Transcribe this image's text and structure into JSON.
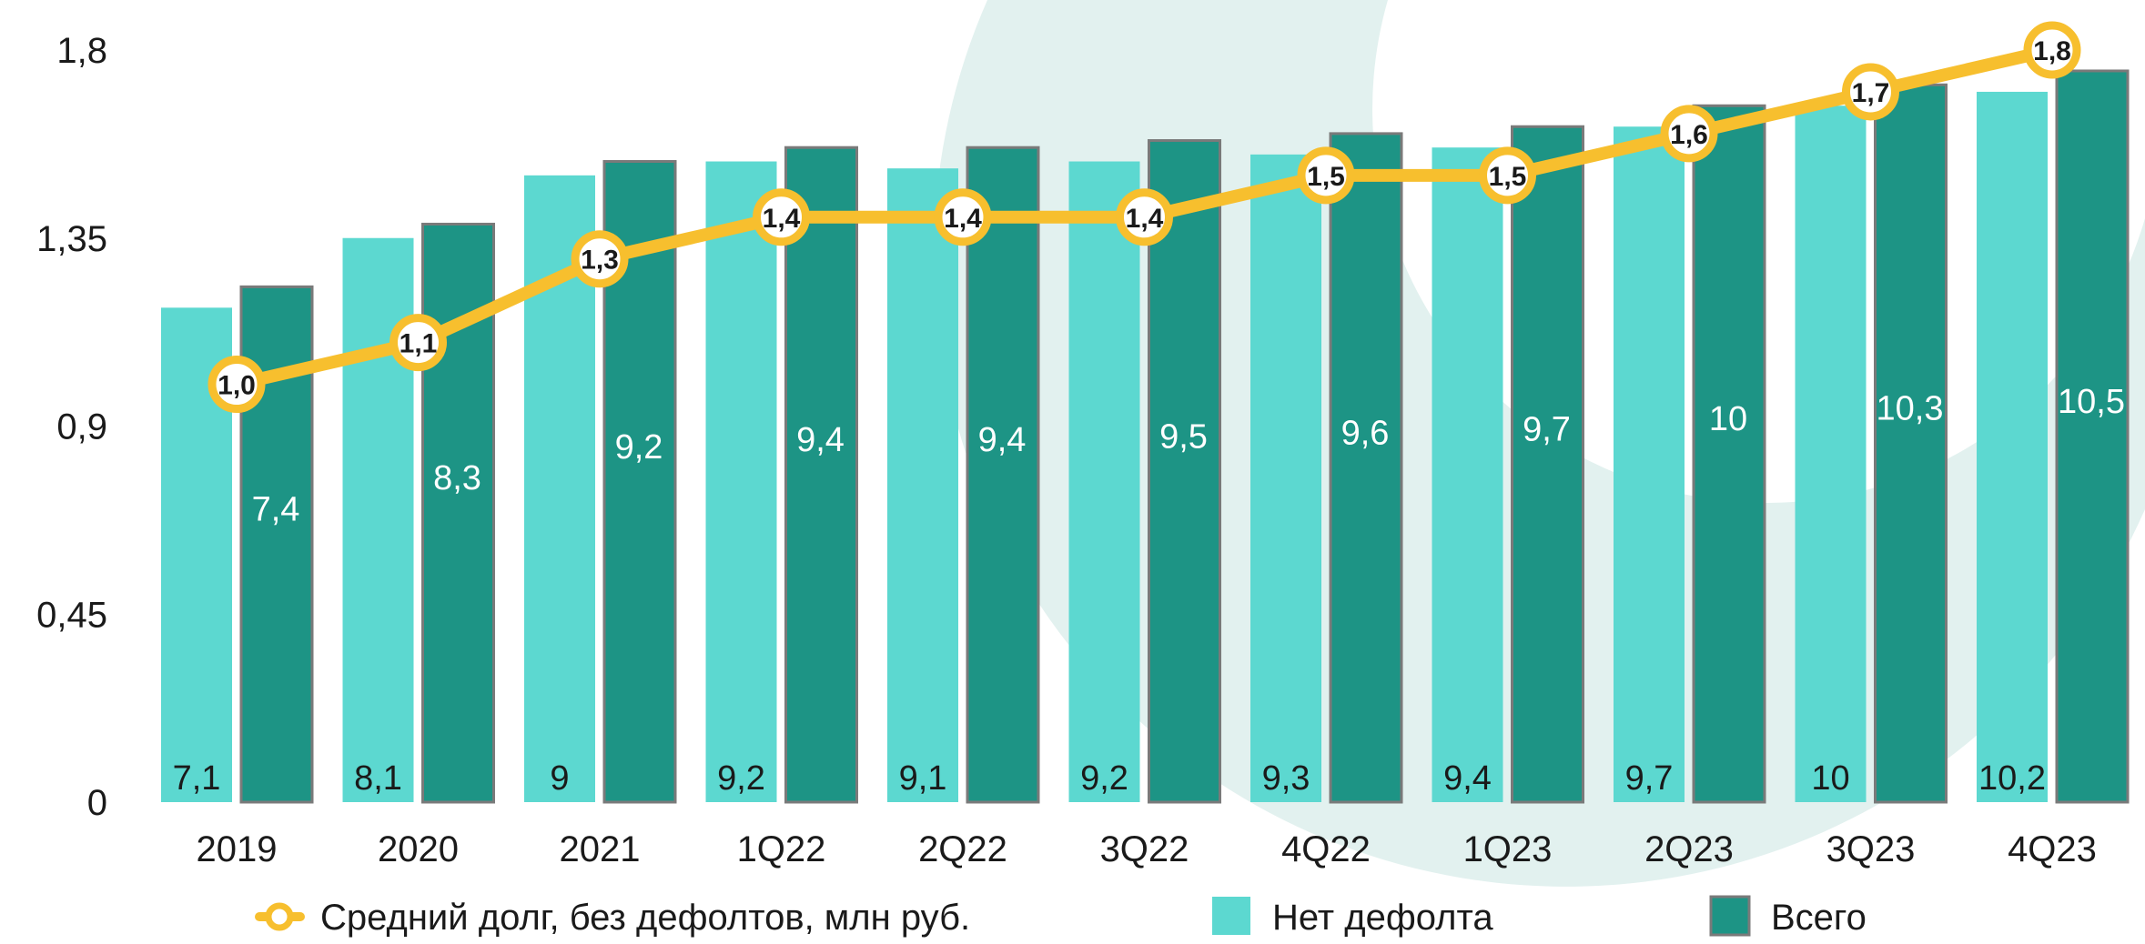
{
  "chart_data": {
    "type": "bar",
    "categories": [
      "2019",
      "2020",
      "2021",
      "1Q22",
      "2Q22",
      "3Q22",
      "4Q22",
      "1Q23",
      "2Q23",
      "3Q23",
      "4Q23"
    ],
    "series": [
      {
        "name": "Нет дефолта",
        "kind": "bar",
        "color": "#5cd8d0",
        "values": [
          7.1,
          8.1,
          9,
          9.2,
          9.1,
          9.2,
          9.3,
          9.4,
          9.7,
          10,
          10.2
        ],
        "labels": [
          "7,1",
          "8,1",
          "9",
          "9,2",
          "9,1",
          "9,2",
          "9,3",
          "9,4",
          "9,7",
          "10",
          "10,2"
        ]
      },
      {
        "name": "Всего",
        "kind": "bar",
        "color": "#1d9485",
        "values": [
          7.4,
          8.3,
          9.2,
          9.4,
          9.4,
          9.5,
          9.6,
          9.7,
          10,
          10.3,
          10.5
        ],
        "labels": [
          "7,4",
          "8,3",
          "9,2",
          "9,4",
          "9,4",
          "9,5",
          "9,6",
          "9,7",
          "10",
          "10,3",
          "10,5"
        ]
      },
      {
        "name": "Средний долг, без дефолтов, млн руб.",
        "kind": "line",
        "color": "#f7bf2e",
        "values": [
          1.0,
          1.1,
          1.3,
          1.4,
          1.4,
          1.4,
          1.5,
          1.5,
          1.6,
          1.7,
          1.8
        ],
        "labels": [
          "1,0",
          "1,1",
          "1,3",
          "1,4",
          "1,4",
          "1,4",
          "1,5",
          "1,5",
          "1,6",
          "1,7",
          "1,8"
        ]
      }
    ],
    "bar_axis_max": 10.8,
    "ylim": [
      0,
      1.8
    ],
    "yticks": [
      0,
      0.45,
      0.9,
      1.35,
      1.8
    ],
    "ytick_labels": [
      "0",
      "0,45",
      "0,9",
      "1,35",
      "1,8"
    ],
    "grid": false,
    "legend_position": "bottom"
  }
}
